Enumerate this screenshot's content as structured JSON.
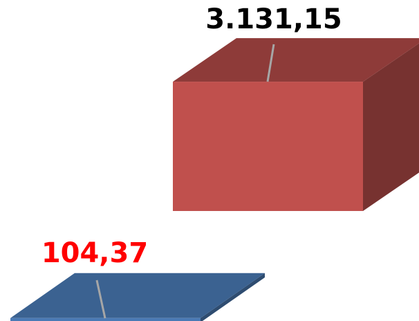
{
  "chart_data": {
    "type": "bar3d",
    "values": [
      104.37,
      3131.15
    ],
    "value_labels": [
      "104,37",
      "3.131,15"
    ],
    "colors": [
      "#4a7ab5",
      "#c0504d"
    ],
    "label_colors": [
      "#ff0000",
      "#000000"
    ]
  }
}
